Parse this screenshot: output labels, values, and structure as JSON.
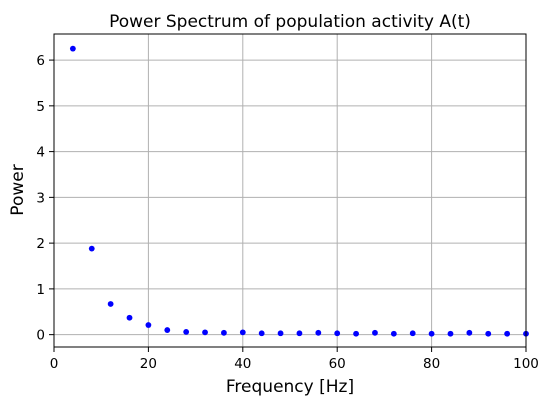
{
  "chart_data": {
    "type": "scatter",
    "title": "Power Spectrum of population activity A(t)",
    "xlabel": "Frequency [Hz]",
    "ylabel": "Power",
    "xlim": [
      0,
      100
    ],
    "ylim": [
      -0.27,
      6.57
    ],
    "xticks": [
      0,
      20,
      40,
      60,
      80,
      100
    ],
    "yticks": [
      0,
      1,
      2,
      3,
      4,
      5,
      6
    ],
    "grid": true,
    "marker_color": "#0000ff",
    "series": [
      {
        "x": [
          4,
          8,
          12,
          16,
          20,
          24,
          28,
          32,
          36,
          40,
          44,
          48,
          52,
          56,
          60,
          64,
          68,
          72,
          76,
          80,
          84,
          88,
          92,
          96,
          100
        ],
        "y": [
          6.25,
          1.88,
          0.67,
          0.37,
          0.21,
          0.1,
          0.06,
          0.05,
          0.04,
          0.05,
          0.03,
          0.03,
          0.03,
          0.04,
          0.03,
          0.02,
          0.04,
          0.02,
          0.03,
          0.02,
          0.02,
          0.04,
          0.02,
          0.02,
          0.02
        ]
      }
    ]
  }
}
